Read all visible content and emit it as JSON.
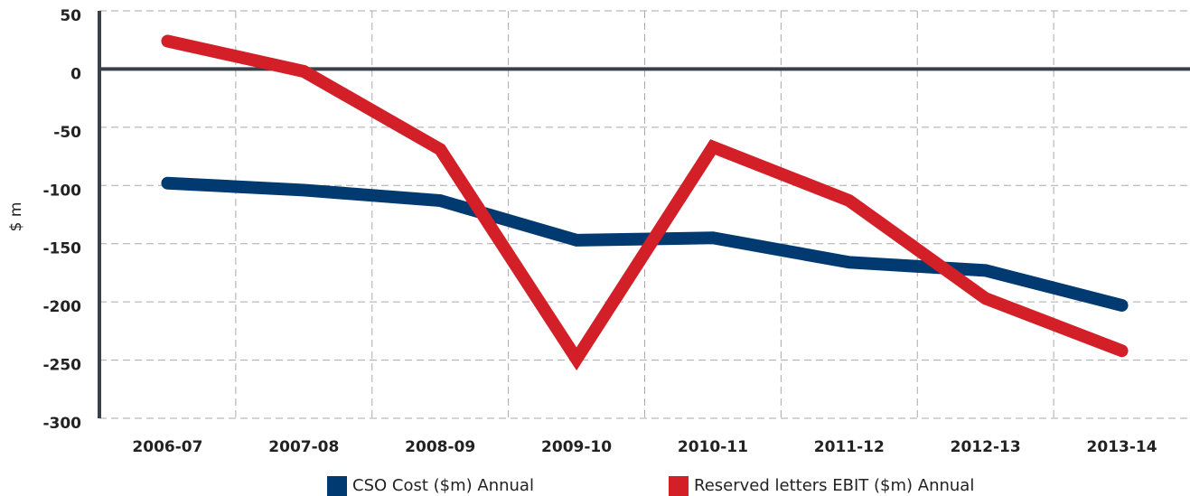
{
  "chart_data": {
    "type": "line",
    "ylabel": "$ m",
    "categories": [
      "2006-07",
      "2007-08",
      "2008-09",
      "2009-10",
      "2010-11",
      "2011-12",
      "2012-13",
      "2013-14"
    ],
    "series": [
      {
        "name": "CSO Cost ($m) Annual",
        "color": "#013a71",
        "values": [
          -98,
          -104,
          -113,
          -147,
          -145,
          -166,
          -173,
          -203
        ]
      },
      {
        "name": "Reserved letters EBIT ($m) Annual",
        "color": "#d21f28",
        "values": [
          24,
          -2,
          -69,
          -249,
          -67,
          -113,
          -197,
          -242
        ]
      }
    ],
    "ylim": [
      -300,
      50
    ],
    "yticks": [
      -300,
      -250,
      -200,
      -150,
      -100,
      -50,
      0,
      50
    ],
    "grid": true
  }
}
